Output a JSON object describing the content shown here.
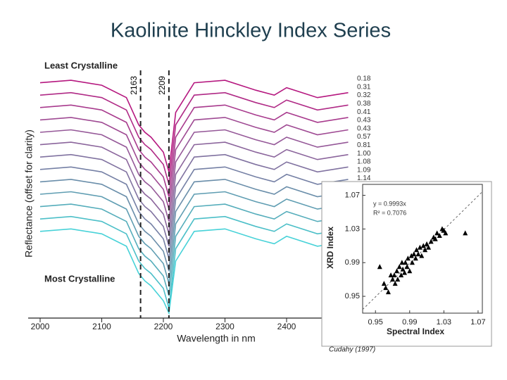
{
  "slide_title": "Kaolinite Hinckley Index Series",
  "source": "Cudahy (1997)",
  "chart_data": [
    {
      "type": "line",
      "x_label": "Wavelength in nm",
      "y_label": "Reflectance (offset for clarity)",
      "top_label": "Least Crystalline",
      "bottom_label": "Most Crystalline",
      "x": [
        2000,
        2050,
        2100,
        2140,
        2160,
        2170,
        2180,
        2200,
        2209,
        2220,
        2250,
        2300,
        2350,
        2380,
        2400,
        2450,
        2500
      ],
      "xlim": [
        2000,
        2560
      ],
      "xticks": [
        2000,
        2100,
        2200,
        2300,
        2400
      ],
      "ylim": [
        0,
        1
      ],
      "reference_lines": [
        2163,
        2209
      ],
      "series": [
        {
          "name": "0.18",
          "color": "#b5177f",
          "values": [
            0.95,
            0.96,
            0.94,
            0.89,
            0.78,
            0.75,
            0.73,
            0.67,
            0.59,
            0.83,
            0.95,
            0.96,
            0.92,
            0.9,
            0.93,
            0.89,
            0.91
          ]
        },
        {
          "name": "0.31",
          "color": "#b02a86",
          "values": [
            0.9,
            0.91,
            0.89,
            0.84,
            0.73,
            0.7,
            0.68,
            0.62,
            0.54,
            0.78,
            0.9,
            0.91,
            0.87,
            0.85,
            0.88,
            0.84,
            0.86
          ]
        },
        {
          "name": "0.32",
          "color": "#a83a8d",
          "values": [
            0.85,
            0.86,
            0.84,
            0.79,
            0.68,
            0.65,
            0.63,
            0.57,
            0.49,
            0.73,
            0.85,
            0.86,
            0.82,
            0.8,
            0.83,
            0.79,
            0.81
          ]
        },
        {
          "name": "0.38",
          "color": "#9f4a93",
          "values": [
            0.8,
            0.81,
            0.79,
            0.74,
            0.63,
            0.6,
            0.58,
            0.52,
            0.44,
            0.68,
            0.8,
            0.81,
            0.77,
            0.75,
            0.78,
            0.74,
            0.76
          ]
        },
        {
          "name": "0.41",
          "color": "#955898",
          "values": [
            0.75,
            0.76,
            0.74,
            0.69,
            0.58,
            0.55,
            0.53,
            0.47,
            0.39,
            0.63,
            0.75,
            0.76,
            0.72,
            0.7,
            0.73,
            0.69,
            0.71
          ]
        },
        {
          "name": "0.43",
          "color": "#8b659c",
          "values": [
            0.7,
            0.71,
            0.69,
            0.64,
            0.53,
            0.5,
            0.48,
            0.42,
            0.34,
            0.58,
            0.7,
            0.71,
            0.67,
            0.65,
            0.68,
            0.64,
            0.66
          ]
        },
        {
          "name": "0.43",
          "color": "#8072a0",
          "values": [
            0.65,
            0.66,
            0.64,
            0.59,
            0.48,
            0.45,
            0.43,
            0.37,
            0.29,
            0.53,
            0.65,
            0.66,
            0.62,
            0.6,
            0.63,
            0.59,
            0.61
          ]
        },
        {
          "name": "0.57",
          "color": "#7580a5",
          "values": [
            0.6,
            0.61,
            0.59,
            0.54,
            0.43,
            0.4,
            0.38,
            0.32,
            0.24,
            0.48,
            0.6,
            0.61,
            0.57,
            0.55,
            0.58,
            0.54,
            0.56
          ]
        },
        {
          "name": "0.81",
          "color": "#6a8eaa",
          "values": [
            0.55,
            0.56,
            0.54,
            0.49,
            0.38,
            0.35,
            0.33,
            0.27,
            0.19,
            0.43,
            0.55,
            0.56,
            0.52,
            0.5,
            0.53,
            0.49,
            0.51
          ]
        },
        {
          "name": "1.00",
          "color": "#5f9db2",
          "values": [
            0.5,
            0.51,
            0.49,
            0.44,
            0.33,
            0.3,
            0.28,
            0.22,
            0.14,
            0.38,
            0.5,
            0.51,
            0.47,
            0.45,
            0.48,
            0.44,
            0.46
          ]
        },
        {
          "name": "1.08",
          "color": "#55adbb",
          "values": [
            0.45,
            0.46,
            0.44,
            0.39,
            0.28,
            0.25,
            0.23,
            0.17,
            0.09,
            0.33,
            0.45,
            0.46,
            0.42,
            0.4,
            0.43,
            0.39,
            0.41
          ]
        },
        {
          "name": "1.09",
          "color": "#4cbfc8",
          "values": [
            0.4,
            0.41,
            0.39,
            0.34,
            0.23,
            0.2,
            0.18,
            0.12,
            0.04,
            0.28,
            0.4,
            0.41,
            0.37,
            0.35,
            0.38,
            0.34,
            0.36
          ]
        },
        {
          "name": "1.14",
          "color": "#48d2d8",
          "values": [
            0.35,
            0.36,
            0.34,
            0.29,
            0.18,
            0.15,
            0.13,
            0.07,
            0.02,
            0.23,
            0.35,
            0.36,
            0.32,
            0.3,
            0.33,
            0.29,
            0.31
          ]
        }
      ]
    },
    {
      "type": "scatter",
      "x_label": "Spectral Index",
      "y_label": "XRD Index",
      "equation": "y = 0.9993x",
      "r_squared": "R² = 0.7076",
      "trendline_slope": 0.9993,
      "color": "#000000",
      "xlim": [
        0.935,
        1.075
      ],
      "xticks": [
        0.95,
        0.99,
        1.03,
        1.07
      ],
      "ylim": [
        0.93,
        1.083
      ],
      "yticks": [
        0.95,
        0.99,
        1.03,
        1.07
      ],
      "x": [
        0.955,
        0.96,
        0.962,
        0.965,
        0.968,
        0.97,
        0.972,
        0.973,
        0.975,
        0.976,
        0.978,
        0.98,
        0.981,
        0.982,
        0.984,
        0.985,
        0.987,
        0.988,
        0.99,
        0.992,
        0.993,
        0.995,
        0.997,
        0.998,
        1.0,
        1.002,
        1.004,
        1.006,
        1.008,
        1.01,
        1.012,
        1.015,
        1.018,
        1.02,
        1.022,
        1.025,
        1.028,
        1.03,
        1.032,
        1.055
      ],
      "y": [
        0.985,
        0.965,
        0.96,
        0.955,
        0.975,
        0.97,
        0.975,
        0.965,
        0.98,
        0.97,
        0.985,
        0.975,
        0.99,
        0.982,
        0.978,
        0.99,
        0.985,
        0.995,
        0.98,
        0.998,
        0.99,
        1.0,
        0.995,
        1.005,
        1.0,
        1.008,
        0.998,
        1.01,
        1.005,
        1.012,
        1.008,
        1.015,
        1.02,
        1.018,
        1.025,
        1.022,
        1.03,
        1.028,
        1.025,
        1.025
      ]
    }
  ]
}
